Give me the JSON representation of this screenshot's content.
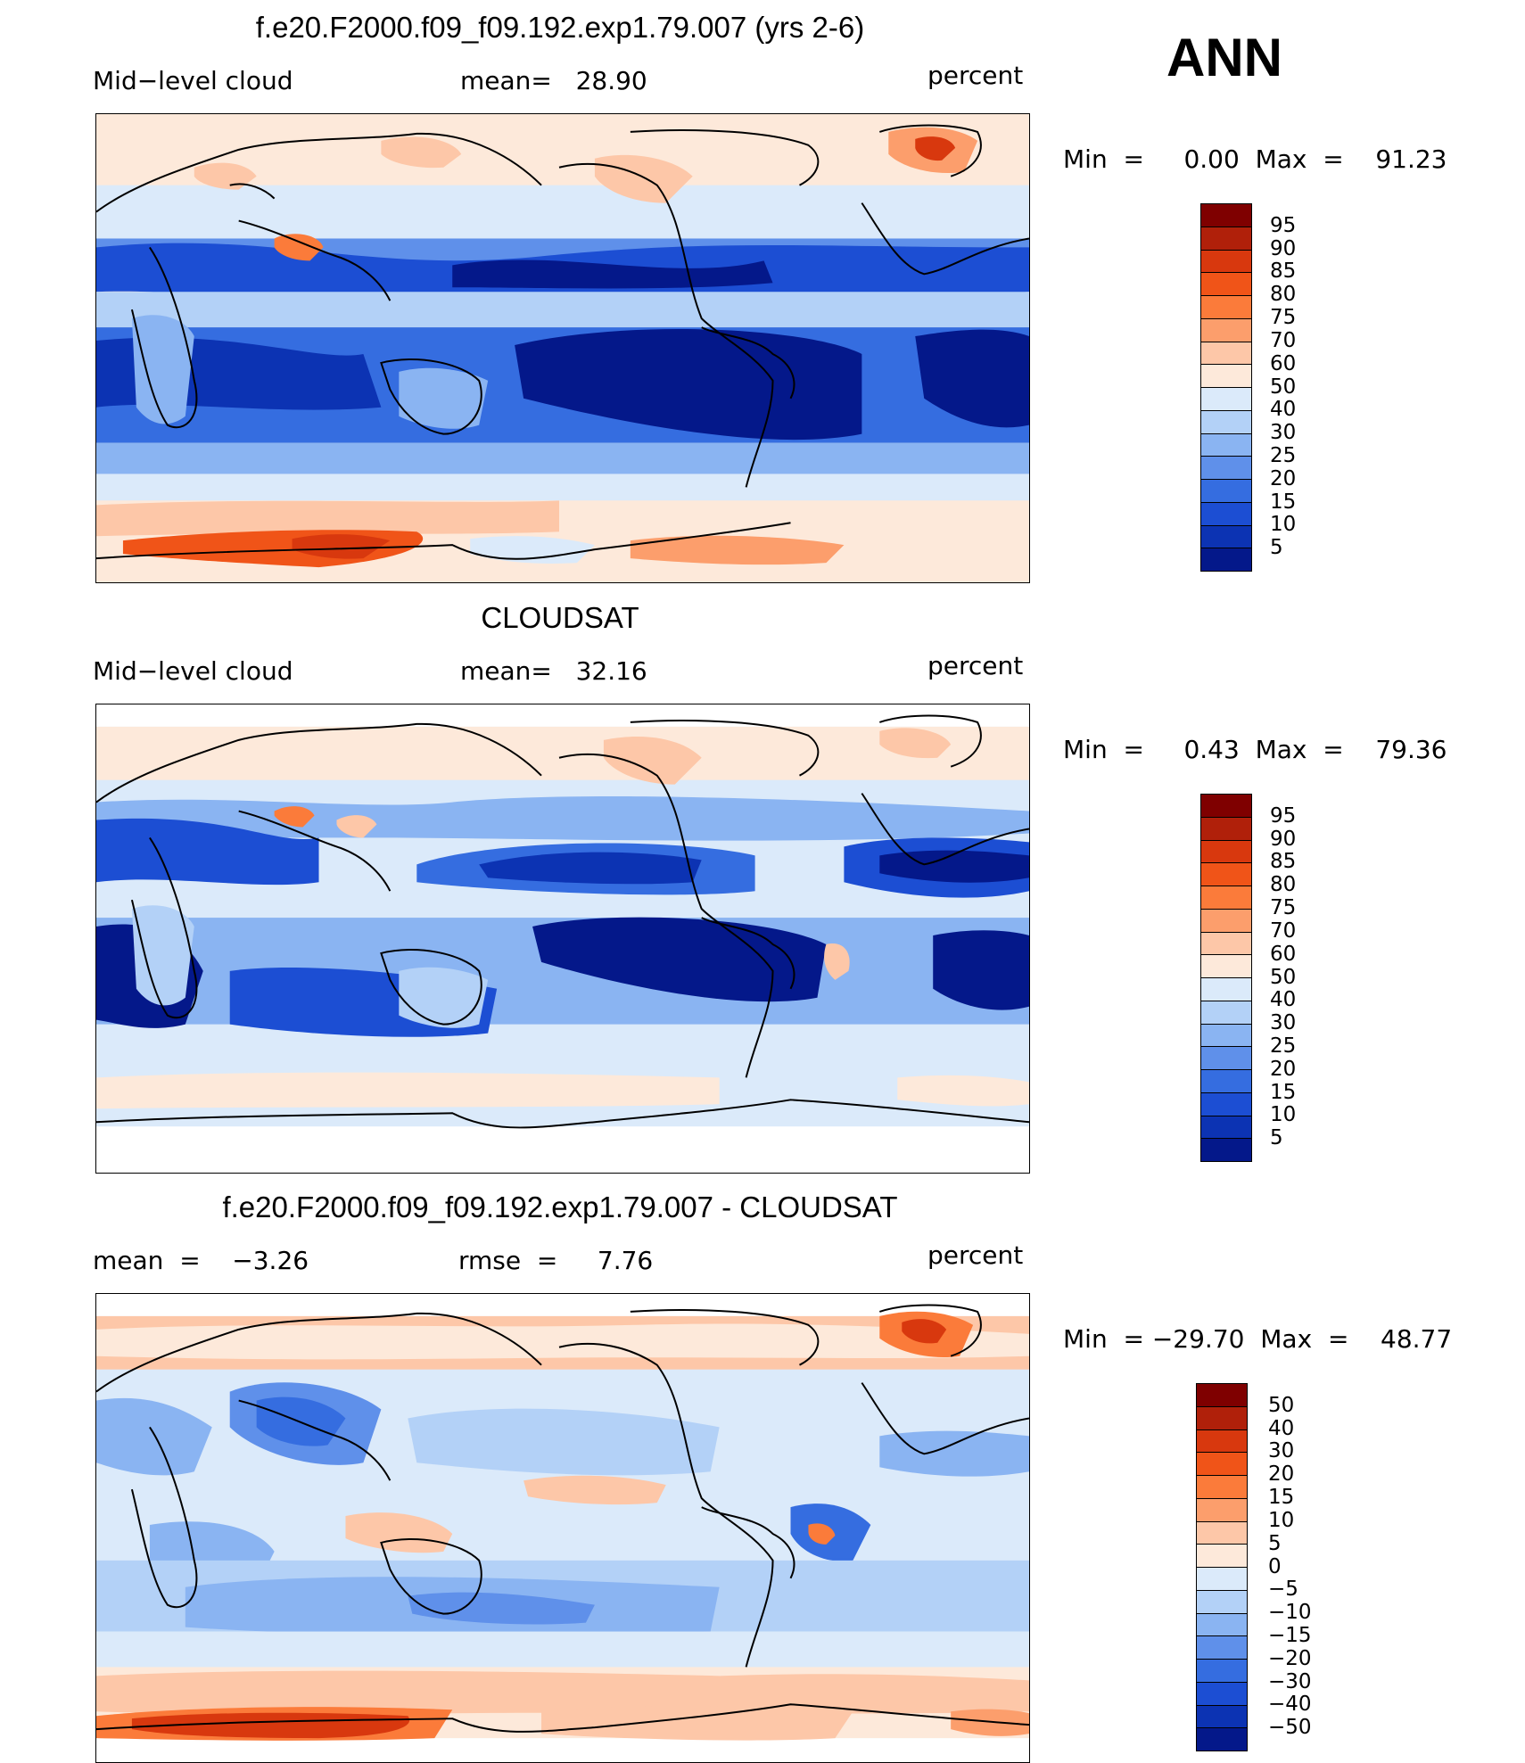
{
  "season": "ANN",
  "panels": [
    {
      "id": "model",
      "title": "f.e20.F2000.f09_f09.192.exp1.79.007 (yrs 2-6)",
      "left_label": "Mid−level cloud",
      "mid_label": "mean=   28.90",
      "units": "percent",
      "minmax": "Min  =     0.00  Max  =    91.23",
      "colorbar": {
        "colors": [
          "#7f0000",
          "#b0200a",
          "#d8380e",
          "#f05418",
          "#fb7b3a",
          "#fc9e6c",
          "#fdc7a8",
          "#fde9da",
          "#dbeafa",
          "#b3d1f7",
          "#8ab4f2",
          "#5f90ea",
          "#356de0",
          "#1c4ed3",
          "#0c33b3",
          "#04188a"
        ],
        "labels": [
          "95",
          "90",
          "85",
          "80",
          "75",
          "70",
          "60",
          "50",
          "40",
          "30",
          "25",
          "20",
          "15",
          "10",
          "5"
        ]
      }
    },
    {
      "id": "obs",
      "title": "CLOUDSAT",
      "left_label": "Mid−level cloud",
      "mid_label": "mean=   32.16",
      "units": "percent",
      "minmax": "Min  =     0.43  Max  =    79.36",
      "colorbar": {
        "colors": [
          "#7f0000",
          "#b0200a",
          "#d8380e",
          "#f05418",
          "#fb7b3a",
          "#fc9e6c",
          "#fdc7a8",
          "#fde9da",
          "#dbeafa",
          "#b3d1f7",
          "#8ab4f2",
          "#5f90ea",
          "#356de0",
          "#1c4ed3",
          "#0c33b3",
          "#04188a"
        ],
        "labels": [
          "95",
          "90",
          "85",
          "80",
          "75",
          "70",
          "60",
          "50",
          "40",
          "30",
          "25",
          "20",
          "15",
          "10",
          "5"
        ]
      }
    },
    {
      "id": "diff",
      "title": "f.e20.F2000.f09_f09.192.exp1.79.007 - CLOUDSAT",
      "left_label": "mean  =    −3.26",
      "mid_label": "rmse  =     7.76",
      "units": "percent",
      "minmax": "Min  = −29.70  Max  =    48.77",
      "colorbar": {
        "colors": [
          "#7f0000",
          "#b0200a",
          "#d8380e",
          "#f05418",
          "#fb7b3a",
          "#fc9e6c",
          "#fdc7a8",
          "#fde9da",
          "#dbeafa",
          "#b3d1f7",
          "#8ab4f2",
          "#5f90ea",
          "#356de0",
          "#1c4ed3",
          "#0c33b3",
          "#04188a"
        ],
        "labels": [
          "50",
          "40",
          "30",
          "20",
          "15",
          "10",
          "5",
          "0",
          "−5",
          "−10",
          "−15",
          "−20",
          "−30",
          "−40",
          "−50"
        ]
      }
    }
  ]
}
